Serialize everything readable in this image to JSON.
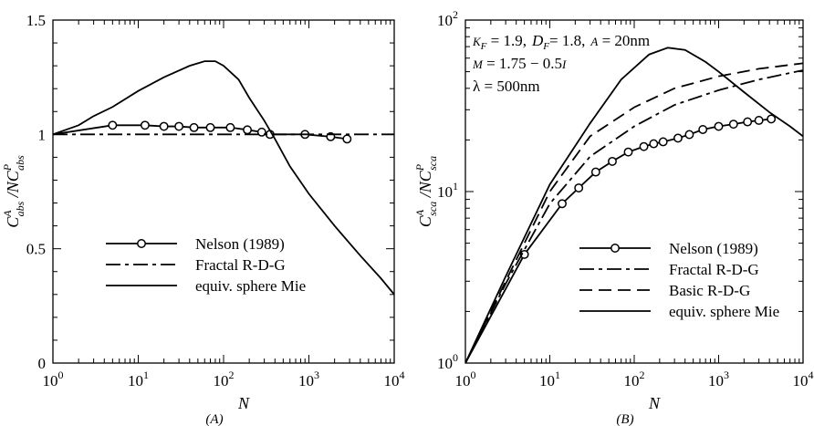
{
  "chart_data": [
    {
      "panel_letter": "(A)",
      "type": "line",
      "x_scale": "log",
      "y_scale": "linear",
      "xlim": [
        1,
        10000
      ],
      "ylim": [
        0,
        1.5
      ],
      "xlabel": "N",
      "ylabel": {
        "main": "C",
        "sup1": "A",
        "sub1": "abs",
        "sep": " /NC",
        "sup2": "P",
        "sub2": "abs"
      },
      "x_ticks": [
        1,
        10,
        100,
        1000,
        10000
      ],
      "y_ticks": [
        0,
        0.5,
        1,
        1.5
      ],
      "y_tick_labels": [
        "0",
        "0.5",
        "1",
        "1.5"
      ],
      "legend": {
        "position": "lower-right",
        "entries": [
          "Nelson (1989)",
          "Fractal R-D-G",
          "equiv. sphere Mie"
        ]
      },
      "series": [
        {
          "name": "Nelson (1989)",
          "style": "solid-circles",
          "points": [
            [
              1,
              1.0
            ],
            [
              5,
              1.04
            ],
            [
              12,
              1.04
            ],
            [
              20,
              1.035
            ],
            [
              30,
              1.035
            ],
            [
              45,
              1.03
            ],
            [
              70,
              1.03
            ],
            [
              120,
              1.03
            ],
            [
              190,
              1.02
            ],
            [
              280,
              1.01
            ],
            [
              350,
              1.0
            ],
            [
              900,
              1.0
            ],
            [
              1800,
              0.99
            ],
            [
              2800,
              0.98
            ]
          ]
        },
        {
          "name": "Fractal R-D-G",
          "style": "dash-dot",
          "points": [
            [
              1,
              1.0
            ],
            [
              10,
              1.0
            ],
            [
              100,
              1.0
            ],
            [
              1000,
              1.0
            ],
            [
              10000,
              1.0
            ]
          ]
        },
        {
          "name": "equiv. sphere Mie",
          "style": "solid",
          "points": [
            [
              1,
              1.0
            ],
            [
              2,
              1.04
            ],
            [
              3,
              1.08
            ],
            [
              5,
              1.12
            ],
            [
              10,
              1.19
            ],
            [
              20,
              1.25
            ],
            [
              40,
              1.3
            ],
            [
              60,
              1.32
            ],
            [
              80,
              1.32
            ],
            [
              100,
              1.3
            ],
            [
              150,
              1.24
            ],
            [
              200,
              1.16
            ],
            [
              300,
              1.06
            ],
            [
              400,
              0.98
            ],
            [
              600,
              0.86
            ],
            [
              1000,
              0.74
            ],
            [
              2000,
              0.6
            ],
            [
              4000,
              0.47
            ],
            [
              7000,
              0.37
            ],
            [
              10000,
              0.3
            ]
          ]
        }
      ]
    },
    {
      "panel_letter": "(B)",
      "type": "line",
      "x_scale": "log",
      "y_scale": "log",
      "xlim": [
        1,
        10000
      ],
      "ylim": [
        1,
        100
      ],
      "xlabel": "N",
      "ylabel": {
        "main": "C",
        "sup1": "A",
        "sub1": "sca",
        "sep": " /NC",
        "sup2": "P",
        "sub2": "sca"
      },
      "x_ticks": [
        1,
        10,
        100,
        1000,
        10000
      ],
      "y_ticks": [
        1,
        10,
        100
      ],
      "annotations": [
        {
          "k_sym": "K",
          "k_sub": "F",
          "k_val": " = 1.9,",
          "d_sym": "D",
          "d_sub": "F",
          "d_val": "= 1.8,",
          "a_sym": "A",
          "a_val": " = 20nm"
        },
        {
          "m_sym": "M",
          "m_val": " = 1.75 − 0.5",
          "i_sym": "I"
        },
        {
          "lambda_text": "λ = 500nm"
        }
      ],
      "legend": {
        "position": "lower-right",
        "entries": [
          "Nelson (1989)",
          "Fractal R-D-G",
          "Basic R-D-G",
          "equiv. sphere Mie"
        ]
      },
      "series": [
        {
          "name": "Nelson (1989)",
          "style": "solid-circles",
          "points": [
            [
              1,
              1.0
            ],
            [
              5,
              4.3
            ],
            [
              14,
              8.5
            ],
            [
              22,
              10.5
            ],
            [
              35,
              13
            ],
            [
              55,
              15
            ],
            [
              85,
              17
            ],
            [
              130,
              18.3
            ],
            [
              170,
              19
            ],
            [
              220,
              19.5
            ],
            [
              330,
              20.5
            ],
            [
              450,
              21.5
            ],
            [
              650,
              23
            ],
            [
              1000,
              24
            ],
            [
              1500,
              24.7
            ],
            [
              2200,
              25.5
            ],
            [
              3000,
              26
            ],
            [
              4200,
              26.5
            ]
          ]
        },
        {
          "name": "Fractal R-D-G",
          "style": "dash-dot",
          "points": [
            [
              1,
              1.0
            ],
            [
              3,
              2.9
            ],
            [
              10,
              8.5
            ],
            [
              30,
              16
            ],
            [
              100,
              24
            ],
            [
              300,
              32
            ],
            [
              1000,
              39
            ],
            [
              3000,
              45
            ],
            [
              10000,
              51
            ]
          ]
        },
        {
          "name": "Basic R-D-G",
          "style": "dashed",
          "points": [
            [
              1,
              1.0
            ],
            [
              3,
              3.0
            ],
            [
              10,
              10
            ],
            [
              30,
              21
            ],
            [
              100,
              31
            ],
            [
              300,
              40
            ],
            [
              1000,
              47
            ],
            [
              3000,
              52
            ],
            [
              10000,
              56
            ]
          ]
        },
        {
          "name": "equiv. sphere Mie",
          "style": "solid",
          "points": [
            [
              1,
              1.0
            ],
            [
              3,
              3.2
            ],
            [
              10,
              11
            ],
            [
              30,
              25
            ],
            [
              70,
              45
            ],
            [
              150,
              63
            ],
            [
              250,
              69
            ],
            [
              400,
              67
            ],
            [
              700,
              57
            ],
            [
              1000,
              50
            ],
            [
              2000,
              38
            ],
            [
              4000,
              29
            ],
            [
              7000,
              24
            ],
            [
              10000,
              21
            ]
          ]
        }
      ]
    }
  ]
}
